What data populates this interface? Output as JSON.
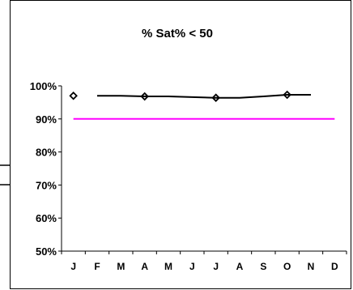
{
  "chart_data": {
    "type": "line",
    "title": "% Sat% < 50",
    "categories": [
      "J",
      "F",
      "M",
      "A",
      "M",
      "J",
      "J",
      "A",
      "S",
      "O",
      "N",
      "D"
    ],
    "yticks": [
      "100%",
      "90%",
      "80%",
      "70%",
      "60%",
      "50%"
    ],
    "ylim": [
      50,
      100
    ],
    "grid": false,
    "legend": "none",
    "series": [
      {
        "values": [
          97,
          null,
          null,
          96.8,
          null,
          null,
          96.4,
          null,
          null,
          97.3,
          null,
          null
        ],
        "color": "#000000",
        "marker": "diamond"
      },
      {
        "values": [
          null,
          97,
          97,
          96.8,
          96.8,
          96.6,
          96.4,
          96.4,
          96.8,
          97.3,
          97.3,
          null
        ],
        "color": "#000000",
        "marker": "none"
      },
      {
        "values": [
          90,
          90,
          90,
          90,
          90,
          90,
          90,
          90,
          90,
          90,
          90,
          90
        ],
        "color": "#ff00ff",
        "marker": "none"
      }
    ]
  }
}
